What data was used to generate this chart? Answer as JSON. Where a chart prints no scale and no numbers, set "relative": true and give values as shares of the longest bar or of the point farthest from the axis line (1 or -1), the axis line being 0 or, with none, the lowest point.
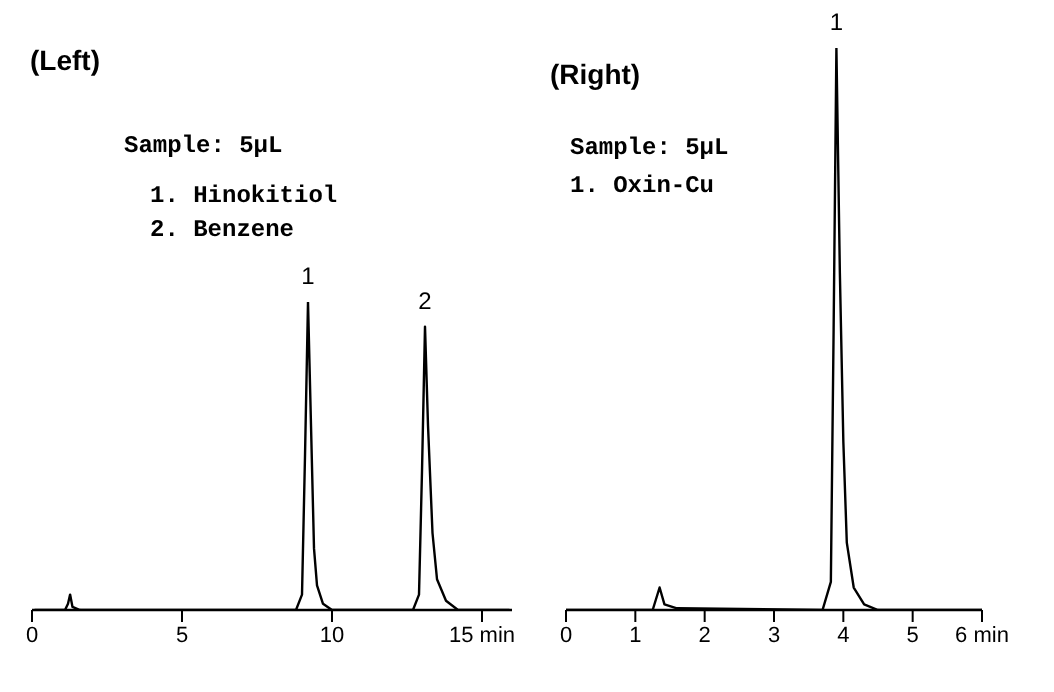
{
  "chart_data": [
    {
      "type": "line",
      "title": "(Left)",
      "relative": true,
      "tick_labels": "x",
      "xlim": [
        0,
        16
      ],
      "xticks": [
        0,
        5,
        10,
        {
          "value": 15,
          "label": "15 min"
        }
      ],
      "series": [
        {
          "color": "#000000",
          "x": [
            0.1,
            1.1,
            1.2,
            1.27,
            1.35,
            1.6,
            8.8,
            9.0,
            9.1,
            9.2,
            9.3,
            9.4,
            9.5,
            9.7,
            10.0,
            12.7,
            12.9,
            13.0,
            13.1,
            13.2,
            13.35,
            13.5,
            13.8,
            14.2,
            15.9
          ],
          "values": [
            0,
            0,
            0.02,
            0.05,
            0.01,
            0,
            0,
            0.05,
            0.5,
            1,
            0.6,
            0.2,
            0.08,
            0.02,
            0,
            0,
            0.05,
            0.45,
            0.92,
            0.6,
            0.25,
            0.1,
            0.03,
            0,
            0
          ]
        }
      ],
      "annotations": [
        "Sample: 5μL",
        "1. Hinokitiol",
        "2. Benzene",
        {
          "text": "1",
          "x": 9.2,
          "y": 1
        },
        {
          "text": "2",
          "x": 13.1,
          "y": 0.92
        }
      ]
    },
    {
      "type": "line",
      "title": "(Right)",
      "relative": true,
      "tick_labels": "x",
      "xlim": [
        0,
        6
      ],
      "xticks": [
        0,
        1,
        2,
        3,
        4,
        5,
        {
          "value": 6,
          "label": "6 min"
        }
      ],
      "series": [
        {
          "color": "#000000",
          "x": [
            0,
            1.25,
            1.3,
            1.35,
            1.42,
            1.6,
            3.7,
            3.82,
            3.86,
            3.9,
            3.95,
            4.0,
            4.05,
            4.15,
            4.3,
            4.5,
            6.0
          ],
          "values": [
            0,
            0,
            0.02,
            0.04,
            0.01,
            0.003,
            0,
            0.05,
            0.5,
            1,
            0.6,
            0.3,
            0.12,
            0.04,
            0.01,
            0,
            0
          ]
        }
      ],
      "annotations": [
        "Sample: 5μL",
        "1. Oxin-Cu",
        {
          "text": "1",
          "x": 3.9,
          "y": 1
        }
      ]
    }
  ]
}
